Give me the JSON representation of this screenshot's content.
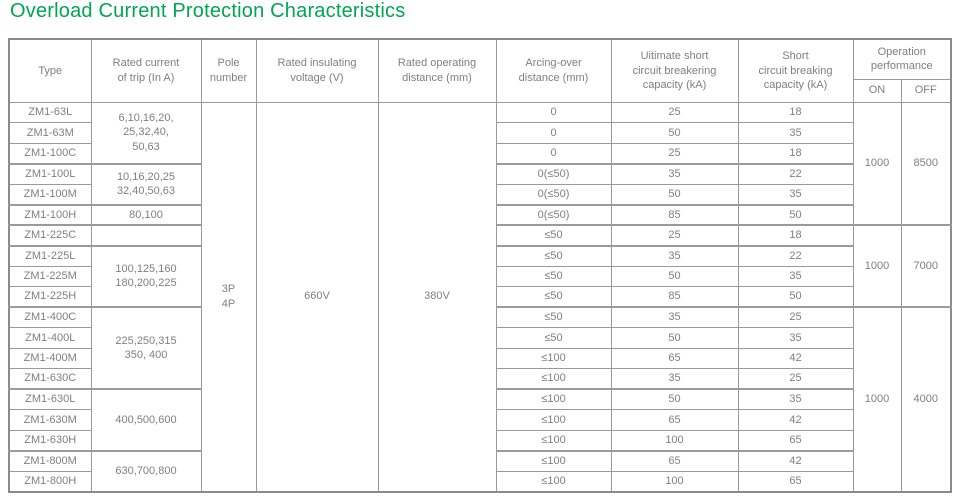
{
  "title": "Overload Current Protection Characteristics",
  "colors": {
    "title_green": "#00A651",
    "text_gray": "#7f7f7f",
    "border_gray": "#9a9a9a"
  },
  "table": {
    "headers": {
      "type": "Type",
      "rated_current": "Rated current\nof trip (In A)",
      "pole": "Pole\nnumber",
      "insulating": "Rated insulating\nvoltage (V)",
      "operating": "Rated operating\ndistance (mm)",
      "arcing": "Arcing-over\ndistance (mm)",
      "ultimate": "Uitimate short\ncircuit breakering\ncapacity (kA)",
      "short": "Short\ncircuit breaking\ncapacity (kA)",
      "operation": "Operation\nperformance",
      "on": "ON",
      "off": "OFF"
    },
    "shared": {
      "pole": "3P\n4P",
      "insulating": "660V",
      "operating": "380V"
    },
    "current_groups": [
      {
        "span": 3,
        "text": "6,10,16,20,\n25,32,40,\n50,63"
      },
      {
        "span": 2,
        "text": "10,16,20,25\n32,40,50,63"
      },
      {
        "span": 1,
        "text": "80,100"
      },
      {
        "span": 1,
        "text": ""
      },
      {
        "span": 3,
        "text": "100,125,160\n180,200,225"
      },
      {
        "span": 4,
        "text": "225,250,315\n350, 400"
      },
      {
        "span": 3,
        "text": "400,500,600"
      },
      {
        "span": 2,
        "text": "630,700,800"
      }
    ],
    "performance_groups": [
      {
        "span": 6,
        "on": "1000",
        "off": "8500"
      },
      {
        "span": 4,
        "on": "1000",
        "off": "7000"
      },
      {
        "span": 9,
        "on": "1000",
        "off": "4000"
      }
    ],
    "rows": [
      {
        "type": "ZM1-63L",
        "arcing": "0",
        "ultimate": "25",
        "short": "18"
      },
      {
        "type": "ZM1-63M",
        "arcing": "0",
        "ultimate": "50",
        "short": "35"
      },
      {
        "type": "ZM1-100C",
        "arcing": "0",
        "ultimate": "25",
        "short": "18"
      },
      {
        "type": "ZM1-100L",
        "arcing": "0(≤50)",
        "ultimate": "35",
        "short": "22"
      },
      {
        "type": "ZM1-100M",
        "arcing": "0(≤50)",
        "ultimate": "50",
        "short": "35"
      },
      {
        "type": "ZM1-100H",
        "arcing": "0(≤50)",
        "ultimate": "85",
        "short": "50"
      },
      {
        "type": "ZM1-225C",
        "arcing": "≤50",
        "ultimate": "25",
        "short": "18"
      },
      {
        "type": "ZM1-225L",
        "arcing": "≤50",
        "ultimate": "35",
        "short": "22"
      },
      {
        "type": "ZM1-225M",
        "arcing": "≤50",
        "ultimate": "50",
        "short": "35"
      },
      {
        "type": "ZM1-225H",
        "arcing": "≤50",
        "ultimate": "85",
        "short": "50"
      },
      {
        "type": "ZM1-400C",
        "arcing": "≤50",
        "ultimate": "35",
        "short": "25"
      },
      {
        "type": "ZM1-400L",
        "arcing": "≤50",
        "ultimate": "50",
        "short": "35"
      },
      {
        "type": "ZM1-400M",
        "arcing": "≤100",
        "ultimate": "65",
        "short": "42"
      },
      {
        "type": "ZM1-630C",
        "arcing": "≤100",
        "ultimate": "35",
        "short": "25"
      },
      {
        "type": "ZM1-630L",
        "arcing": "≤100",
        "ultimate": "50",
        "short": "35"
      },
      {
        "type": "ZM1-630M",
        "arcing": "≤100",
        "ultimate": "65",
        "short": "42"
      },
      {
        "type": "ZM1-630H",
        "arcing": "≤100",
        "ultimate": "100",
        "short": "65"
      },
      {
        "type": "ZM1-800M",
        "arcing": "≤100",
        "ultimate": "65",
        "short": "42"
      },
      {
        "type": "ZM1-800H",
        "arcing": "≤100",
        "ultimate": "100",
        "short": "65"
      }
    ]
  }
}
